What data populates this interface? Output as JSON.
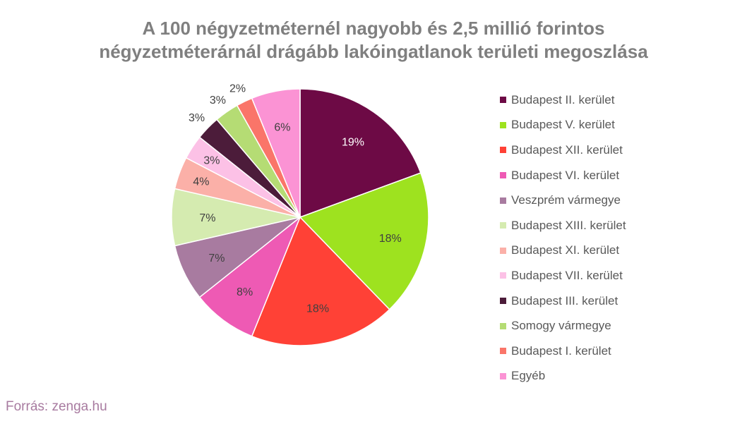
{
  "chart_data": {
    "type": "pie",
    "title_line1": "A 100 négyzetméternél nagyobb és 2,5 millió forintos",
    "title_line2": "négyzetméterárnál drágább lakóingatlanok területi megoszlása",
    "legend_position": "right",
    "slices": [
      {
        "label": "Budapest II. kerület",
        "value": 19,
        "text": "19%",
        "color": "#6d0a45"
      },
      {
        "label": "Budapest V. kerület",
        "value": 18,
        "text": "18%",
        "color": "#9ee21f"
      },
      {
        "label": "Budapest XII. kerület",
        "value": 18,
        "text": "18%",
        "color": "#ff4136"
      },
      {
        "label": "Budapest VI. kerület",
        "value": 8,
        "text": "8%",
        "color": "#ee5ab4"
      },
      {
        "label": "Veszprém vármegye",
        "value": 7,
        "text": "7%",
        "color": "#a87ba0"
      },
      {
        "label": "Budapest XIII. kerület",
        "value": 7,
        "text": "7%",
        "color": "#d5ebb0"
      },
      {
        "label": "Budapest XI. kerület",
        "value": 4,
        "text": "4%",
        "color": "#fbb0a8"
      },
      {
        "label": "Budapest VII. kerület",
        "value": 3,
        "text": "3%",
        "color": "#fcc1e6"
      },
      {
        "label": "Budapest III. kerület",
        "value": 3,
        "text": "3%",
        "color": "#4c1c3a"
      },
      {
        "label": "Somogy vármegye",
        "value": 3,
        "text": "3%",
        "color": "#b5dc74"
      },
      {
        "label": "Budapest I. kerület",
        "value": 2,
        "text": "2%",
        "color": "#fa7569"
      },
      {
        "label": "Egyéb",
        "value": 6,
        "text": "6%",
        "color": "#fb93d4"
      }
    ]
  },
  "source": "Forrás: zenga.hu"
}
